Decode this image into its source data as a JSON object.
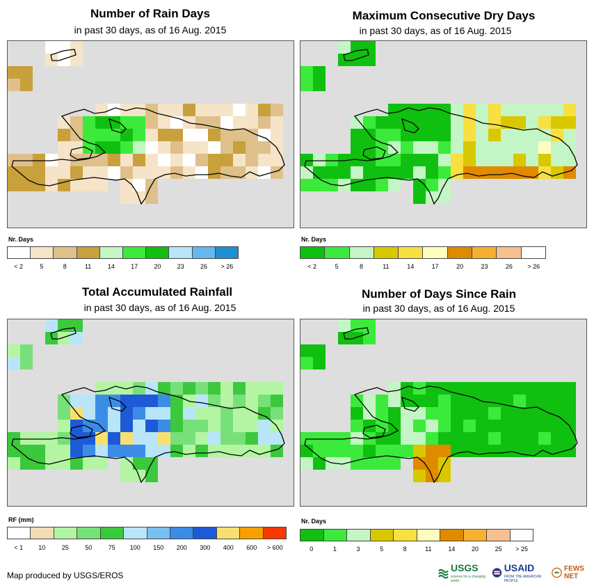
{
  "panels": [
    {
      "title": "Number of Rain Days",
      "subtitle": "in past 30 days, as of 16 Aug. 2015",
      "legend_label": "Nr. Days",
      "legend_colors": [
        "#ffffff",
        "#f5e4c8",
        "#dfc08a",
        "#c8a03c",
        "#c4f5c4",
        "#3cea3c",
        "#10c010",
        "#b8e6f8",
        "#64b8f0",
        "#1e8fd6"
      ],
      "legend_ticks": [
        "< 2",
        "5",
        "8",
        "11",
        "14",
        "17",
        "20",
        "23",
        "26",
        "> 26"
      ]
    },
    {
      "title": "Maximum Consecutive Dry Days",
      "subtitle": "in past 30 days, as of 16 Aug. 2015",
      "legend_label": "Nr. Days",
      "legend_colors": [
        "#10c010",
        "#3cea3c",
        "#c4f5c4",
        "#d8c800",
        "#f8e040",
        "#fffcc0",
        "#e08a00",
        "#f8b030",
        "#f8c090",
        "#ffffff"
      ],
      "legend_ticks": [
        "< 2",
        "5",
        "8",
        "11",
        "14",
        "17",
        "20",
        "23",
        "26",
        "> 26"
      ]
    },
    {
      "title": "Total Accumulated Rainfall",
      "subtitle": "in past 30 days, as of 16 Aug. 2015",
      "legend_label": "RF (mm)",
      "legend_colors": [
        "#ffffff",
        "#f2dcb4",
        "#b4f5a4",
        "#78e078",
        "#3cc83c",
        "#b8e6f8",
        "#78c0f0",
        "#3c8ce6",
        "#1e5ad6",
        "#f8e070",
        "#f8a000",
        "#f83800"
      ],
      "legend_ticks": [
        "< 1",
        "10",
        "25",
        "50",
        "75",
        "100",
        "150",
        "200",
        "300",
        "400",
        "600",
        "> 600"
      ]
    },
    {
      "title": "Number of Days Since Rain",
      "subtitle": "in past 30 days, as of 16 Aug. 2015",
      "legend_label": "Nr. Days",
      "legend_colors": [
        "#10c010",
        "#3cea3c",
        "#c4f5c4",
        "#d8c800",
        "#f8e040",
        "#fffcc0",
        "#e08a00",
        "#f8b030",
        "#f8c090",
        "#ffffff"
      ],
      "legend_ticks": [
        "0",
        "1",
        "3",
        "5",
        "8",
        "11",
        "14",
        "20",
        "25",
        "> 25"
      ]
    }
  ],
  "footer": "Map produced by USGS/EROS",
  "logos": {
    "usgs": "USGS",
    "usgs_tagline": "science for a changing world",
    "usaid": "USAID",
    "usaid_tagline": "FROM THE AMERICAN PEOPLE",
    "fewsnet": "FEWS NET"
  }
}
